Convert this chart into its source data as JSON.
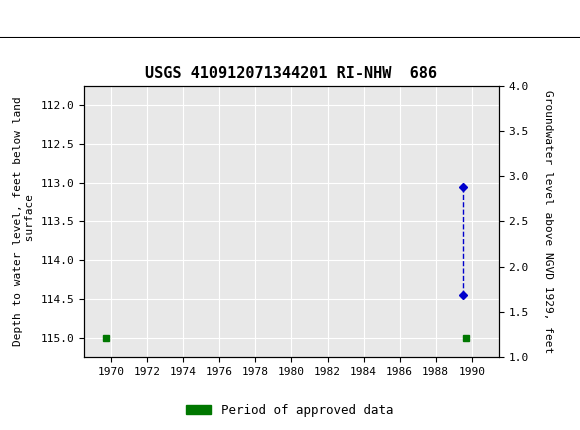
{
  "title": "USGS 410912071344201 RI-NHW  686",
  "ylabel_left": "Depth to water level, feet below land\n surface",
  "ylabel_right": "Groundwater level above NGVD 1929, feet",
  "xlim": [
    1968.5,
    1991.5
  ],
  "ylim_left": [
    115.25,
    111.75
  ],
  "ylim_right": [
    1.0,
    4.0
  ],
  "xticks": [
    1970,
    1972,
    1974,
    1976,
    1978,
    1980,
    1982,
    1984,
    1986,
    1988,
    1990
  ],
  "yticks_left": [
    112.0,
    112.5,
    113.0,
    113.5,
    114.0,
    114.5,
    115.0
  ],
  "yticks_right": [
    1.0,
    1.5,
    2.0,
    2.5,
    3.0,
    3.5,
    4.0
  ],
  "green_points_x": [
    1969.7,
    1989.7
  ],
  "green_points_y": [
    115.0,
    115.0
  ],
  "blue_points_x": [
    1989.5,
    1989.5
  ],
  "blue_points_y": [
    113.05,
    114.45
  ],
  "header_color": "#1a7040",
  "background_color": "#ffffff",
  "plot_bg_color": "#e8e8e8",
  "grid_color": "#ffffff",
  "blue_marker_color": "#0000cc",
  "green_marker_color": "#007700",
  "legend_label": "Period of approved data",
  "font_family": "DejaVu Sans Mono",
  "title_fontsize": 11,
  "axis_fontsize": 8,
  "tick_fontsize": 8
}
